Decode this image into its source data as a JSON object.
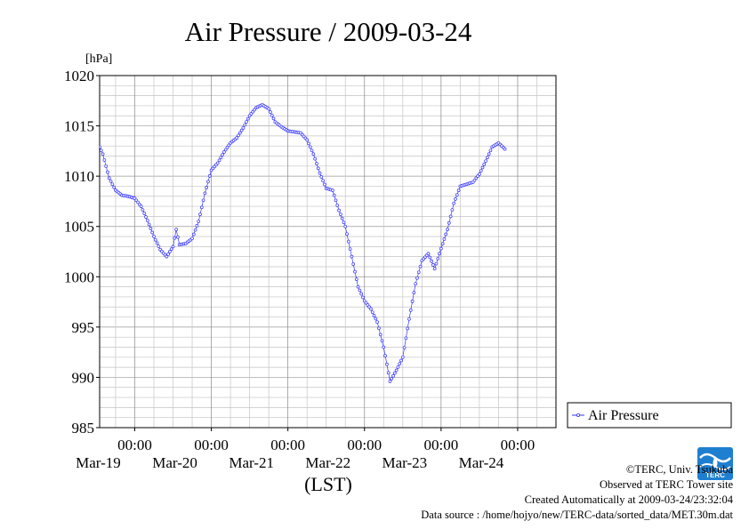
{
  "chart_data": {
    "type": "line",
    "title": "Air Pressure / 2009-03-24",
    "ylabel": "[hPa]",
    "xlabel": "(LST)",
    "ylim": [
      985,
      1020
    ],
    "yticks": [
      985,
      990,
      995,
      1000,
      1005,
      1010,
      1015,
      1020
    ],
    "ytick_labels": [
      "985",
      "990",
      "995",
      "1000",
      "1005",
      "1010",
      "1015",
      "1020"
    ],
    "xlim_hours": [
      -11,
      132
    ],
    "xticks": [
      {
        "time": "00:00",
        "date": "Mar-19"
      },
      {
        "time": "00:00",
        "date": "Mar-20"
      },
      {
        "time": "00:00",
        "date": "Mar-21"
      },
      {
        "time": "00:00",
        "date": "Mar-22"
      },
      {
        "time": "00:00",
        "date": "Mar-23"
      },
      {
        "time": "00:00",
        "date": "Mar-24"
      }
    ],
    "grid": true,
    "legend_position": "right",
    "series": [
      {
        "name": "Air Pressure",
        "color": "#3333ff",
        "points": [
          [
            -24,
            1013.6
          ],
          [
            -22,
            1013.4
          ],
          [
            -20,
            1013.4
          ],
          [
            -18,
            1014.0
          ],
          [
            -16,
            1014.8
          ],
          [
            -14,
            1014.6
          ],
          [
            -12,
            1013.6
          ],
          [
            -10,
            1012.2
          ],
          [
            -8,
            1009.8
          ],
          [
            -6,
            1008.6
          ],
          [
            -4,
            1008.1
          ],
          [
            -2,
            1008.0
          ],
          [
            0,
            1007.8
          ],
          [
            2,
            1007.0
          ],
          [
            4,
            1005.6
          ],
          [
            6,
            1004.0
          ],
          [
            8,
            1002.7
          ],
          [
            10,
            1002.0
          ],
          [
            12,
            1003.0
          ],
          [
            13,
            1004.7
          ],
          [
            14,
            1003.2
          ],
          [
            16,
            1003.3
          ],
          [
            18,
            1003.8
          ],
          [
            20,
            1005.5
          ],
          [
            22,
            1008.3
          ],
          [
            24,
            1010.6
          ],
          [
            26,
            1011.3
          ],
          [
            28,
            1012.4
          ],
          [
            30,
            1013.3
          ],
          [
            32,
            1013.8
          ],
          [
            34,
            1014.8
          ],
          [
            36,
            1016.0
          ],
          [
            38,
            1016.8
          ],
          [
            40,
            1017.1
          ],
          [
            42,
            1016.7
          ],
          [
            44,
            1015.4
          ],
          [
            46,
            1014.9
          ],
          [
            48,
            1014.5
          ],
          [
            50,
            1014.4
          ],
          [
            52,
            1014.3
          ],
          [
            54,
            1013.6
          ],
          [
            56,
            1012.2
          ],
          [
            58,
            1010.3
          ],
          [
            60,
            1008.8
          ],
          [
            62,
            1008.6
          ],
          [
            64,
            1006.6
          ],
          [
            66,
            1005.0
          ],
          [
            68,
            1002.0
          ],
          [
            70,
            999.0
          ],
          [
            72,
            997.6
          ],
          [
            74,
            996.8
          ],
          [
            76,
            995.5
          ],
          [
            78,
            993.0
          ],
          [
            80,
            989.6
          ],
          [
            82,
            990.7
          ],
          [
            84,
            992.0
          ],
          [
            86,
            995.8
          ],
          [
            88,
            999.3
          ],
          [
            90,
            1001.6
          ],
          [
            92,
            1002.3
          ],
          [
            94,
            1000.8
          ],
          [
            96,
            1002.8
          ],
          [
            98,
            1004.7
          ],
          [
            100,
            1007.3
          ],
          [
            102,
            1009.0
          ],
          [
            104,
            1009.2
          ],
          [
            106,
            1009.4
          ],
          [
            108,
            1010.2
          ],
          [
            110,
            1011.5
          ],
          [
            112,
            1012.9
          ],
          [
            114,
            1013.3
          ],
          [
            116,
            1012.7
          ]
        ]
      }
    ]
  },
  "credits": {
    "copyright": "©TERC, Univ. Tsukuba",
    "observed": "Observed at TERC Tower site",
    "created": "Created Automatically at 2009-03-24/23:32:04",
    "source": "Data source : /home/hojyo/new/TERC-data/sorted_data/MET.30m.dat",
    "logo_text": "TERC"
  }
}
